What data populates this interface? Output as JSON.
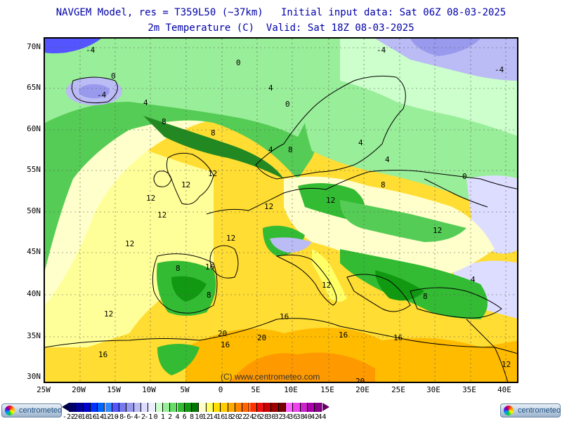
{
  "title_line1": "NAVGEM Model, res = T359L50 (~37km)   Initial input data: Sat 06Z 08-03-2025",
  "title_line2": "2m Temperature (C)  Valid: Sat 18Z 08-03-2025",
  "watermark": "(C) www.centrometeo.com",
  "logo_text": "centrometeo",
  "lat_labels": [
    "70N",
    "65N",
    "60N",
    "55N",
    "50N",
    "45N",
    "40N",
    "35N",
    "30N"
  ],
  "lon_labels": [
    "25W",
    "20W",
    "15W",
    "10W",
    "5W",
    "0",
    "5E",
    "10E",
    "15E",
    "20E",
    "25E",
    "30E",
    "35E",
    "40E"
  ],
  "contour_labels": [
    {
      "text": "-4"
    },
    {
      "text": "-4"
    },
    {
      "text": "-4"
    },
    {
      "text": "-4"
    },
    {
      "text": "0"
    },
    {
      "text": "0"
    },
    {
      "text": "0"
    },
    {
      "text": "0"
    },
    {
      "text": "4"
    },
    {
      "text": "4"
    },
    {
      "text": "4"
    },
    {
      "text": "4"
    },
    {
      "text": "4"
    },
    {
      "text": "4"
    },
    {
      "text": "8"
    },
    {
      "text": "8"
    },
    {
      "text": "8"
    },
    {
      "text": "8"
    },
    {
      "text": "8"
    },
    {
      "text": "8"
    },
    {
      "text": "8"
    },
    {
      "text": "12"
    },
    {
      "text": "12"
    },
    {
      "text": "12"
    },
    {
      "text": "12"
    },
    {
      "text": "12"
    },
    {
      "text": "12"
    },
    {
      "text": "12"
    },
    {
      "text": "12"
    },
    {
      "text": "12"
    },
    {
      "text": "12"
    },
    {
      "text": "12"
    },
    {
      "text": "12"
    },
    {
      "text": "16"
    },
    {
      "text": "16"
    },
    {
      "text": "16"
    },
    {
      "text": "16"
    },
    {
      "text": "16"
    },
    {
      "text": "16"
    },
    {
      "text": "20"
    },
    {
      "text": "20"
    },
    {
      "text": "20"
    }
  ],
  "colorbar": {
    "labels": [
      "-22",
      "-20",
      "-18",
      "-16",
      "-14",
      "-12",
      "-10",
      "-8",
      "-6",
      "-4",
      "-2",
      "-1",
      "0",
      "1",
      "2",
      "4",
      "6",
      "8",
      "10",
      "12",
      "14",
      "16",
      "18",
      "20",
      "22",
      "24",
      "26",
      "28",
      "30",
      "32",
      "34",
      "36",
      "38",
      "40",
      "42",
      "44"
    ],
    "colors": [
      "#000066",
      "#000099",
      "#0000cc",
      "#0033ff",
      "#0066ff",
      "#3388ff",
      "#5555ff",
      "#7777ee",
      "#9999ee",
      "#bbbbf5",
      "#ddddff",
      "#eeeeff",
      "#ccffcc",
      "#99ee99",
      "#66dd66",
      "#33bb33",
      "#119911",
      "#007700",
      "#ffffcc",
      "#ffff66",
      "#ffdd00",
      "#ffcc00",
      "#ffaa00",
      "#ff8800",
      "#ff6600",
      "#ff3300",
      "#ee1111",
      "#cc0000",
      "#990000",
      "#770000",
      "#ff66ff",
      "#ee44ee",
      "#cc22cc",
      "#aa00aa",
      "#880088"
    ]
  }
}
